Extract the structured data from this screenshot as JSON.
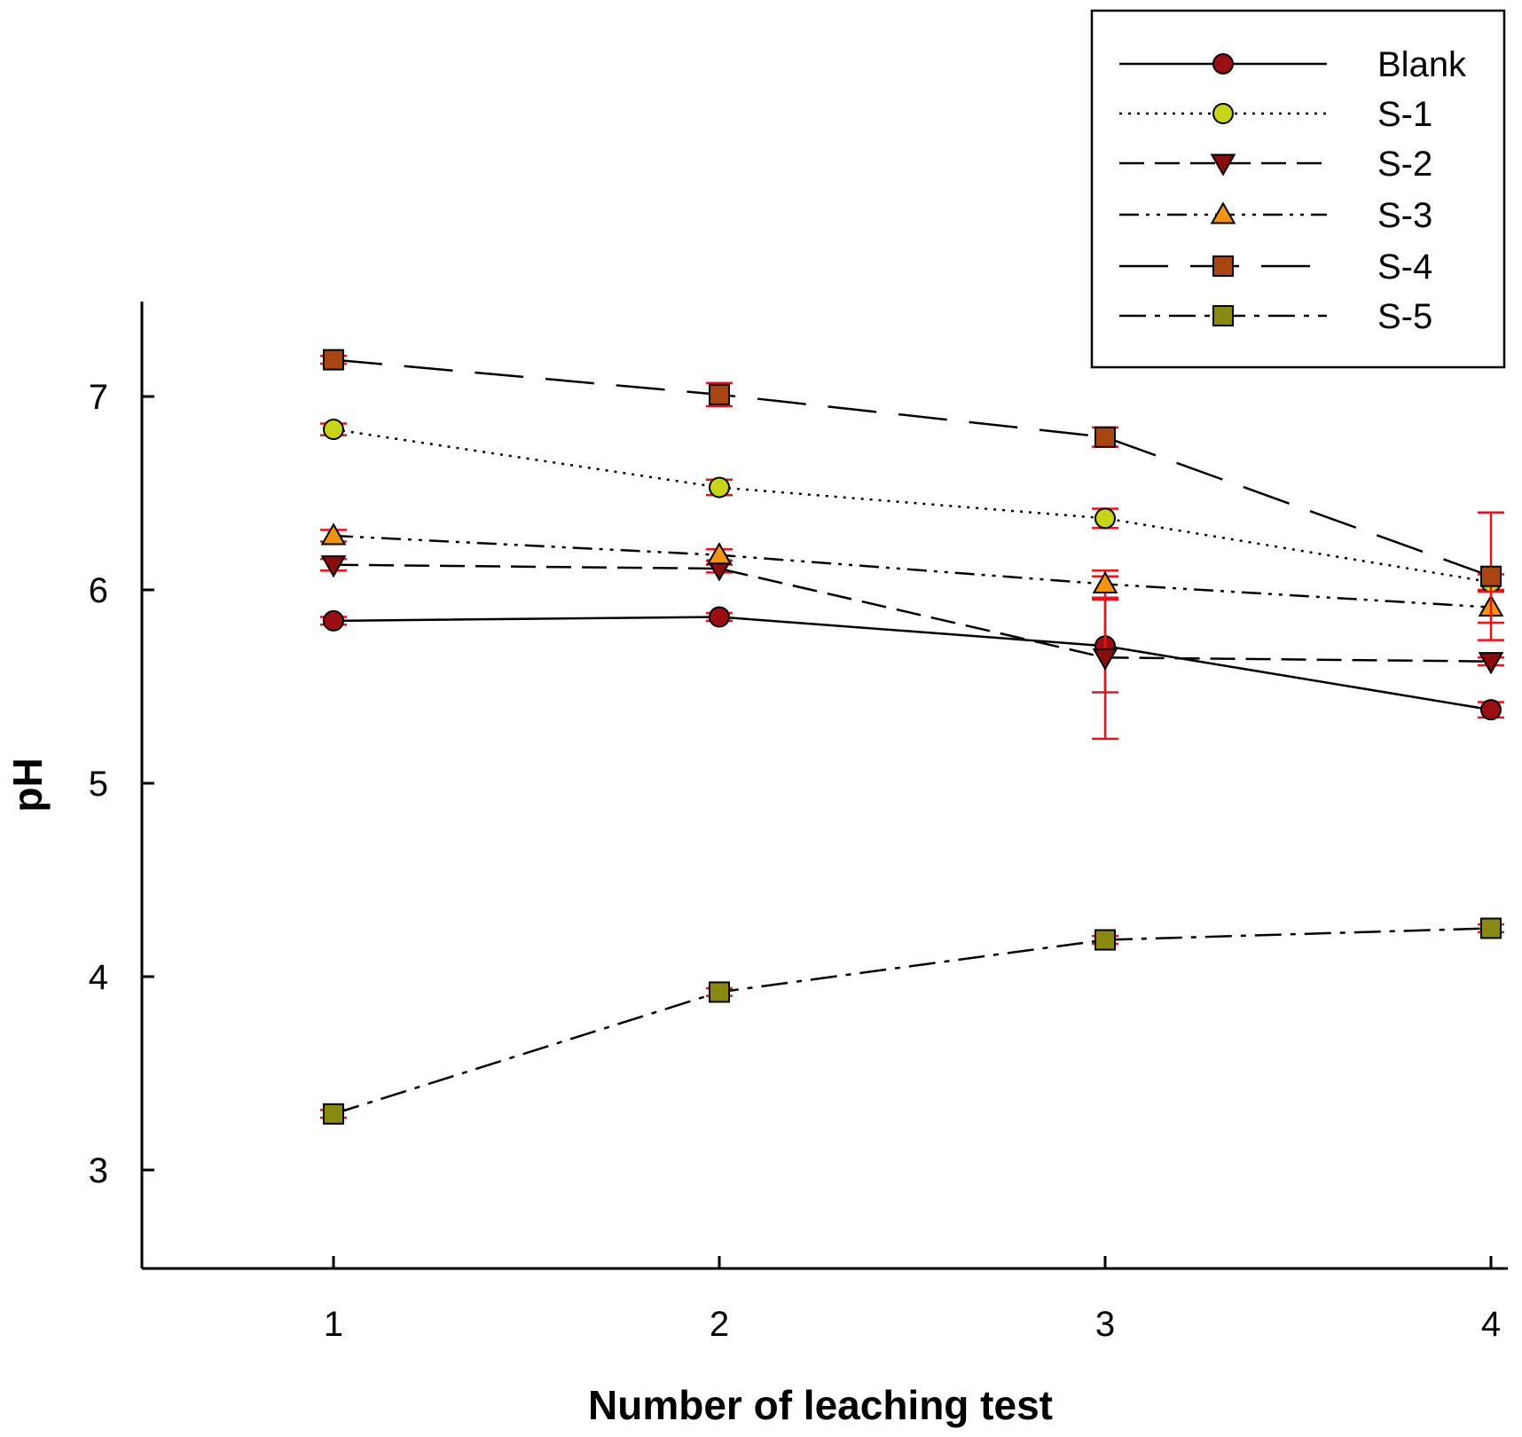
{
  "chart_data": {
    "type": "line",
    "title": "",
    "xlabel": "Number of leaching test",
    "ylabel": "pH",
    "x": [
      1,
      2,
      3,
      4
    ],
    "xlim": [
      0.5,
      4.05
    ],
    "ylim": [
      2.5,
      7.5
    ],
    "xticks": [
      "1",
      "2",
      "3",
      "4"
    ],
    "yticks": [
      "3",
      "4",
      "5",
      "6",
      "7"
    ],
    "grid": false,
    "legend_position": "top-right",
    "error_bar_color": "#e8141c",
    "series": [
      {
        "name": "Blank",
        "marker": "circle",
        "line": "solid",
        "color": "#9b0f13",
        "values": [
          5.84,
          5.86,
          5.71,
          5.38
        ],
        "errors": [
          0.02,
          0.02,
          0.24,
          0.04
        ]
      },
      {
        "name": "S-1",
        "marker": "circle",
        "line": "dotted",
        "color": "#c8d419",
        "values": [
          6.83,
          6.53,
          6.37,
          6.04
        ],
        "errors": [
          0.03,
          0.04,
          0.05,
          0.04
        ]
      },
      {
        "name": "S-2",
        "marker": "triangle-down",
        "line": "dashed",
        "color": "#8a0d0d",
        "values": [
          6.13,
          6.11,
          5.65,
          5.63
        ],
        "errors": [
          0.03,
          0.02,
          0.42,
          0.02
        ]
      },
      {
        "name": "S-3",
        "marker": "triangle-up",
        "line": "dash-dot-dot",
        "color": "#f39312",
        "values": [
          6.28,
          6.18,
          6.03,
          5.91
        ],
        "errors": [
          0.03,
          0.03,
          0.07,
          0.08
        ]
      },
      {
        "name": "S-4",
        "marker": "square",
        "line": "long-dash",
        "color": "#a84512",
        "values": [
          7.19,
          7.01,
          6.79,
          6.07
        ],
        "errors": [
          0.02,
          0.06,
          0.05,
          0.33
        ]
      },
      {
        "name": "S-5",
        "marker": "square",
        "line": "dash-dot",
        "color": "#8a8a12",
        "values": [
          3.29,
          3.92,
          4.19,
          4.25
        ],
        "errors": [
          0.02,
          0.02,
          0.02,
          0.02
        ]
      }
    ]
  }
}
